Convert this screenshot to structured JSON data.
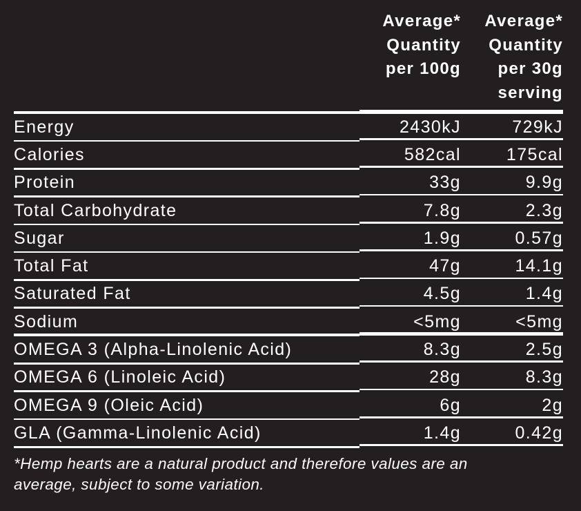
{
  "colors": {
    "background": "#231f20",
    "text": "#ffffff",
    "rule": "#ffffff"
  },
  "header": {
    "per_100g": "Average*\nQuantity\nper 100g",
    "per_30g": "Average*\nQuantity\nper 30g\nserving"
  },
  "rows": [
    {
      "label": "Energy",
      "per_100g": "2430kJ",
      "per_30g": "729kJ",
      "section_end": false
    },
    {
      "label": "Calories",
      "per_100g": "582cal",
      "per_30g": "175cal",
      "section_end": false
    },
    {
      "label": "Protein",
      "per_100g": "33g",
      "per_30g": "9.9g",
      "section_end": false
    },
    {
      "label": "Total Carbohydrate",
      "per_100g": "7.8g",
      "per_30g": "2.3g",
      "section_end": false
    },
    {
      "label": "Sugar",
      "per_100g": "1.9g",
      "per_30g": "0.57g",
      "section_end": false
    },
    {
      "label": "Total Fat",
      "per_100g": "47g",
      "per_30g": "14.1g",
      "section_end": false
    },
    {
      "label": "Saturated Fat",
      "per_100g": "4.5g",
      "per_30g": "1.4g",
      "section_end": false
    },
    {
      "label": "Sodium",
      "per_100g": "<5mg",
      "per_30g": "<5mg",
      "section_end": true
    },
    {
      "label": "OMEGA 3 (Alpha-Linolenic Acid)",
      "per_100g": "8.3g",
      "per_30g": "2.5g",
      "section_end": false
    },
    {
      "label": "OMEGA 6 (Linoleic Acid)",
      "per_100g": "28g",
      "per_30g": "8.3g",
      "section_end": false
    },
    {
      "label": "OMEGA 9 (Oleic Acid)",
      "per_100g": "6g",
      "per_30g": "2g",
      "section_end": false
    },
    {
      "label": "GLA (Gamma-Linolenic Acid)",
      "per_100g": "1.4g",
      "per_30g": "0.42g",
      "section_end": false
    }
  ],
  "footnote": "*Hemp hearts are a natural product and therefore values are an\naverage, subject to some variation."
}
